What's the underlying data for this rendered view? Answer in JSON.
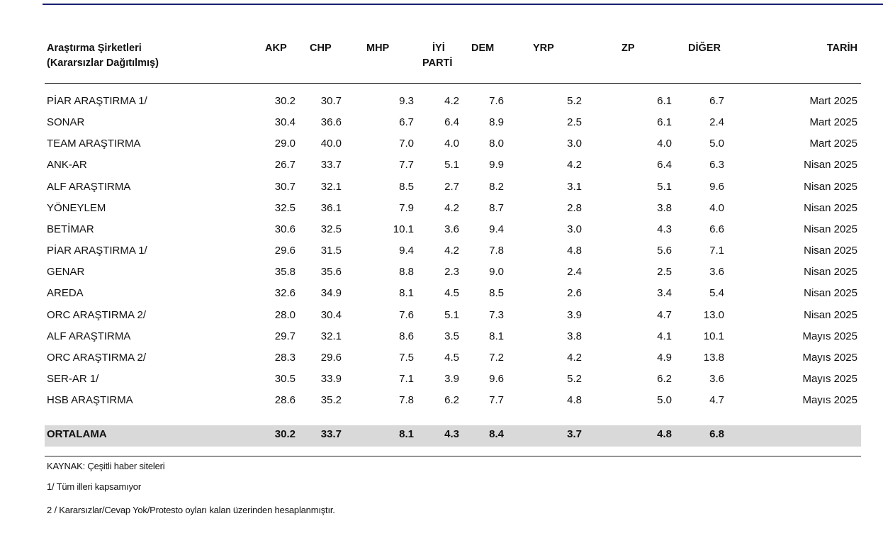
{
  "header": {
    "company_line1": "Araştırma Şirketleri",
    "company_line2": "(Kararsızlar Dağıtılmış)",
    "akp": "AKP",
    "chp": "CHP",
    "mhp": "MHP",
    "iyi_line1": "İYİ",
    "iyi_line2": "PARTİ",
    "dem": "DEM",
    "yrp": "YRP",
    "zp": "ZP",
    "diger": "DİĞER",
    "tarih": "TARİH"
  },
  "rows": [
    {
      "name": "PİAR ARAŞTIRMA 1/",
      "akp": "30.2",
      "chp": "30.7",
      "mhp": "9.3",
      "iyi": "4.2",
      "dem": "7.6",
      "yrp": "5.2",
      "zp": "6.1",
      "diger": "6.7",
      "tarih": "Mart 2025"
    },
    {
      "name": "SONAR",
      "akp": "30.4",
      "chp": "36.6",
      "mhp": "6.7",
      "iyi": "6.4",
      "dem": "8.9",
      "yrp": "2.5",
      "zp": "6.1",
      "diger": "2.4",
      "tarih": "Mart 2025"
    },
    {
      "name": "TEAM ARAŞTIRMA",
      "akp": "29.0",
      "chp": "40.0",
      "mhp": "7.0",
      "iyi": "4.0",
      "dem": "8.0",
      "yrp": "3.0",
      "zp": "4.0",
      "diger": "5.0",
      "tarih": "Mart 2025"
    },
    {
      "name": "ANK-AR",
      "akp": "26.7",
      "chp": "33.7",
      "mhp": "7.7",
      "iyi": "5.1",
      "dem": "9.9",
      "yrp": "4.2",
      "zp": "6.4",
      "diger": "6.3",
      "tarih": "Nisan 2025"
    },
    {
      "name": "ALF ARAŞTIRMA",
      "akp": "30.7",
      "chp": "32.1",
      "mhp": "8.5",
      "iyi": "2.7",
      "dem": "8.2",
      "yrp": "3.1",
      "zp": "5.1",
      "diger": "9.6",
      "tarih": "Nisan 2025"
    },
    {
      "name": "YÖNEYLEM",
      "akp": "32.5",
      "chp": "36.1",
      "mhp": "7.9",
      "iyi": "4.2",
      "dem": "8.7",
      "yrp": "2.8",
      "zp": "3.8",
      "diger": "4.0",
      "tarih": "Nisan 2025"
    },
    {
      "name": "BETİMAR",
      "akp": "30.6",
      "chp": "32.5",
      "mhp": "10.1",
      "iyi": "3.6",
      "dem": "9.4",
      "yrp": "3.0",
      "zp": "4.3",
      "diger": "6.6",
      "tarih": "Nisan 2025"
    },
    {
      "name": "PİAR ARAŞTIRMA 1/",
      "akp": "29.6",
      "chp": "31.5",
      "mhp": "9.4",
      "iyi": "4.2",
      "dem": "7.8",
      "yrp": "4.8",
      "zp": "5.6",
      "diger": "7.1",
      "tarih": "Nisan 2025"
    },
    {
      "name": "GENAR",
      "akp": "35.8",
      "chp": "35.6",
      "mhp": "8.8",
      "iyi": "2.3",
      "dem": "9.0",
      "yrp": "2.4",
      "zp": "2.5",
      "diger": "3.6",
      "tarih": "Nisan 2025"
    },
    {
      "name": "AREDA",
      "akp": "32.6",
      "chp": "34.9",
      "mhp": "8.1",
      "iyi": "4.5",
      "dem": "8.5",
      "yrp": "2.6",
      "zp": "3.4",
      "diger": "5.4",
      "tarih": "Nisan 2025"
    },
    {
      "name": "ORC ARAŞTIRMA 2/",
      "akp": "28.0",
      "chp": "30.4",
      "mhp": "7.6",
      "iyi": "5.1",
      "dem": "7.3",
      "yrp": "3.9",
      "zp": "4.7",
      "diger": "13.0",
      "tarih": "Nisan 2025"
    },
    {
      "name": "ALF ARAŞTIRMA",
      "akp": "29.7",
      "chp": "32.1",
      "mhp": "8.6",
      "iyi": "3.5",
      "dem": "8.1",
      "yrp": "3.8",
      "zp": "4.1",
      "diger": "10.1",
      "tarih": "Mayıs 2025"
    },
    {
      "name": "ORC ARAŞTIRMA 2/",
      "akp": "28.3",
      "chp": "29.6",
      "mhp": "7.5",
      "iyi": "4.5",
      "dem": "7.2",
      "yrp": "4.2",
      "zp": "4.9",
      "diger": "13.8",
      "tarih": "Mayıs 2025"
    },
    {
      "name": "SER-AR 1/",
      "akp": "30.5",
      "chp": "33.9",
      "mhp": "7.1",
      "iyi": "3.9",
      "dem": "9.6",
      "yrp": "5.2",
      "zp": "6.2",
      "diger": "3.6",
      "tarih": "Mayıs 2025"
    },
    {
      "name": "HSB ARAŞTIRMA",
      "akp": "28.6",
      "chp": "35.2",
      "mhp": "7.8",
      "iyi": "6.2",
      "dem": "7.7",
      "yrp": "4.8",
      "zp": "5.0",
      "diger": "4.7",
      "tarih": "Mayıs 2025"
    }
  ],
  "average": {
    "name": "ORTALAMA",
    "akp": "30.2",
    "chp": "33.7",
    "mhp": "8.1",
    "iyi": "4.3",
    "dem": "8.4",
    "yrp": "3.7",
    "zp": "4.8",
    "diger": "6.8",
    "tarih": ""
  },
  "notes": {
    "source": "KAYNAK: Çeşitli haber siteleri",
    "note1": "1/ Tüm illeri kapsamıyor",
    "note2": "2 / Kararsızlar/Cevap Yok/Protesto oyları kalan üzerinden hesaplanmıştır."
  },
  "colors": {
    "top_rule": "#1a1f6e",
    "average_band": "#d9d9d9"
  }
}
